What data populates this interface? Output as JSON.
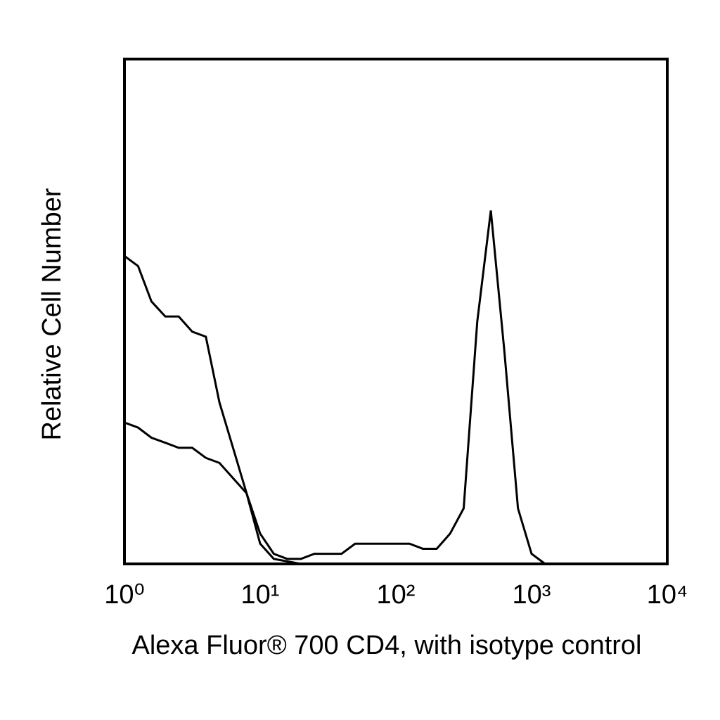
{
  "chart_data": {
    "type": "line",
    "xlabel": "Alexa Fluor® 700 CD4, with isotype control",
    "ylabel": "Relative Cell Number",
    "xscale": "log",
    "xlim": [
      1,
      10000
    ],
    "ylim": [
      0,
      100
    ],
    "xticks": [
      {
        "value": 1,
        "label": "10⁰"
      },
      {
        "value": 10,
        "label": "10¹"
      },
      {
        "value": 100,
        "label": "10²"
      },
      {
        "value": 1000,
        "label": "10³"
      },
      {
        "value": 10000,
        "label": "10⁴"
      }
    ],
    "x": [
      1,
      1.26,
      1.58,
      2,
      2.51,
      3.16,
      3.98,
      5.01,
      6.31,
      7.94,
      10,
      12.6,
      15.8,
      20,
      25.1,
      31.6,
      39.8,
      50.1,
      63.1,
      79.4,
      100,
      126,
      158,
      200,
      251,
      316,
      398,
      501,
      631,
      794,
      1000,
      1259
    ],
    "series": [
      {
        "color": "#000000",
        "values": [
          61,
          59,
          52,
          49,
          49,
          46,
          45,
          32,
          23,
          14,
          6,
          2,
          1,
          1,
          2,
          2,
          2,
          4,
          4,
          4,
          4,
          4,
          3,
          3,
          6,
          11,
          48,
          70,
          42,
          11,
          2,
          0
        ]
      },
      {
        "color": "#000000",
        "values": [
          28,
          27,
          25,
          24,
          23,
          23,
          21,
          20,
          17,
          14,
          4,
          1,
          0.5,
          0,
          0,
          0,
          0,
          0,
          0,
          0,
          0,
          0,
          0,
          0,
          0,
          0,
          0,
          0,
          0,
          0,
          0,
          0
        ]
      }
    ]
  }
}
